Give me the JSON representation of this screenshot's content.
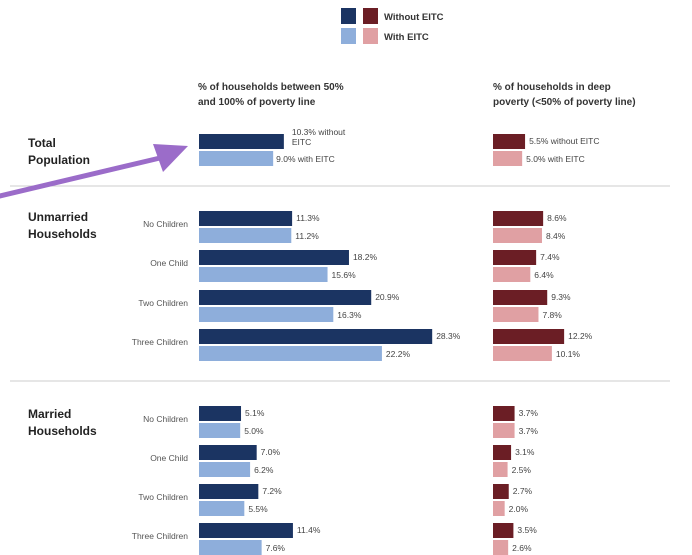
{
  "legend": {
    "without_label": "Without EITC",
    "with_label": "With EITC"
  },
  "headers": {
    "left_line1": "% of households between 50%",
    "left_line2": "and 100% of poverty line",
    "right_line1": "% of households in deep",
    "right_line2": "poverty (<50% of poverty line)"
  },
  "colors": {
    "left_without": "#1b3462",
    "left_with": "#8eaedb",
    "right_without": "#6b1e25",
    "right_with": "#e0a0a3",
    "separator": "#cccccc",
    "arrow": "#9b6cc9"
  },
  "chart_data": {
    "type": "bar",
    "orientation": "horizontal",
    "panels": [
      "% of households between 50% and 100% of poverty line",
      "% of households in deep poverty (<50% of poverty line)"
    ],
    "series": [
      {
        "name": "Without EITC"
      },
      {
        "name": "With EITC"
      }
    ],
    "groups": [
      {
        "name_lines": [
          "Total",
          "Population"
        ],
        "rows": [
          {
            "category": "",
            "between": {
              "without": 10.3,
              "with": 9.0
            },
            "deep": {
              "without": 5.5,
              "with": 5.0
            },
            "between_labels": {
              "without_line1": "10.3% without",
              "without_line2": "EITC",
              "with": "9.0% with EITC"
            },
            "deep_labels": {
              "without": "5.5% without EITC",
              "with": "5.0% with EITC"
            }
          }
        ]
      },
      {
        "name_lines": [
          "Unmarried",
          "Households"
        ],
        "rows": [
          {
            "category": "No Children",
            "between": {
              "without": 11.3,
              "with": 11.2
            },
            "deep": {
              "without": 8.6,
              "with": 8.4
            },
            "between_labels": {
              "without": "11.3%",
              "with": "11.2%"
            },
            "deep_labels": {
              "without": "8.6%",
              "with": "8.4%"
            }
          },
          {
            "category": "One Child",
            "between": {
              "without": 18.2,
              "with": 15.6
            },
            "deep": {
              "without": 7.4,
              "with": 6.4
            },
            "between_labels": {
              "without": "18.2%",
              "with": "15.6%"
            },
            "deep_labels": {
              "without": "7.4%",
              "with": "6.4%"
            }
          },
          {
            "category": "Two Children",
            "between": {
              "without": 20.9,
              "with": 16.3
            },
            "deep": {
              "without": 9.3,
              "with": 7.8
            },
            "between_labels": {
              "without": "20.9%",
              "with": "16.3%"
            },
            "deep_labels": {
              "without": "9.3%",
              "with": "7.8%"
            }
          },
          {
            "category": "Three Children",
            "between": {
              "without": 28.3,
              "with": 22.2
            },
            "deep": {
              "without": 12.2,
              "with": 10.1
            },
            "between_labels": {
              "without": "28.3%",
              "with": "22.2%"
            },
            "deep_labels": {
              "without": "12.2%",
              "with": "10.1%"
            }
          }
        ]
      },
      {
        "name_lines": [
          "Married",
          "Households"
        ],
        "rows": [
          {
            "category": "No Children",
            "between": {
              "without": 5.1,
              "with": 5.0
            },
            "deep": {
              "without": 3.7,
              "with": 3.7
            },
            "between_labels": {
              "without": "5.1%",
              "with": "5.0%"
            },
            "deep_labels": {
              "without": "3.7%",
              "with": "3.7%"
            }
          },
          {
            "category": "One Child",
            "between": {
              "without": 7.0,
              "with": 6.2
            },
            "deep": {
              "without": 3.1,
              "with": 2.5
            },
            "between_labels": {
              "without": "7.0%",
              "with": "6.2%"
            },
            "deep_labels": {
              "without": "3.1%",
              "with": "2.5%"
            }
          },
          {
            "category": "Two Children",
            "between": {
              "without": 7.2,
              "with": 5.5
            },
            "deep": {
              "without": 2.7,
              "with": 2.0
            },
            "between_labels": {
              "without": "7.2%",
              "with": "5.5%"
            },
            "deep_labels": {
              "without": "2.7%",
              "with": "2.0%"
            }
          },
          {
            "category": "Three Children",
            "between": {
              "without": 11.4,
              "with": 7.6
            },
            "deep": {
              "without": 3.5,
              "with": 2.6
            },
            "between_labels": {
              "without": "11.4%",
              "with": "7.6%"
            },
            "deep_labels": {
              "without": "3.5%",
              "with": "2.6%"
            }
          }
        ]
      }
    ]
  }
}
